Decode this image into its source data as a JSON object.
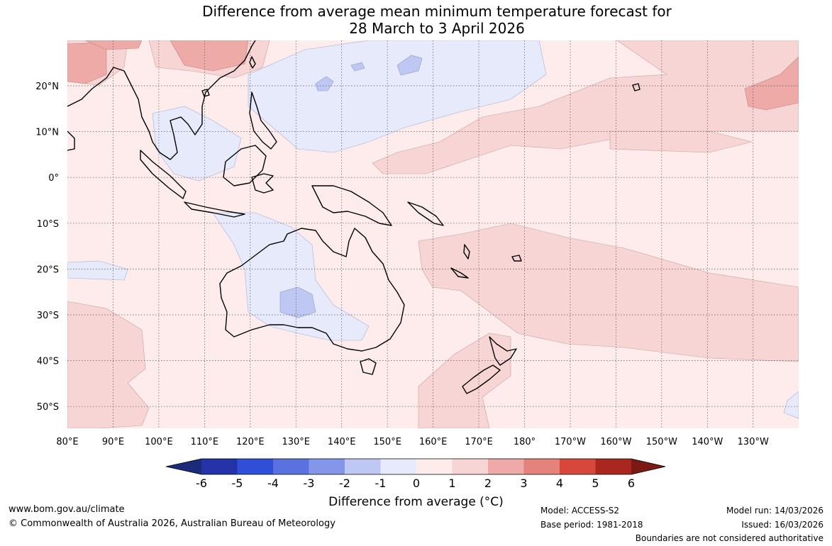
{
  "title": {
    "line1": "Difference from average mean minimum temperature forecast for",
    "line2": "28 March to 3 April 2026"
  },
  "map": {
    "lon_labels": [
      "80°E",
      "90°E",
      "100°E",
      "110°E",
      "120°E",
      "130°E",
      "140°E",
      "150°E",
      "160°E",
      "170°E",
      "180°",
      "170°W",
      "160°W",
      "150°W",
      "140°W",
      "130°W"
    ],
    "lat_labels": [
      "20°N",
      "10°N",
      "0°",
      "10°S",
      "20°S",
      "30°S",
      "40°S",
      "50°S"
    ]
  },
  "colorbar": {
    "label": "Difference from average (°C)",
    "ticks": [
      "-6",
      "-5",
      "-4",
      "-3",
      "-2",
      "-1",
      "0",
      "1",
      "2",
      "3",
      "4",
      "5",
      "6"
    ],
    "colors": [
      "#2434a8",
      "#2f4fd8",
      "#5a72e0",
      "#8496e8",
      "#bfc8f2",
      "#e6eafb",
      "#fdeceb",
      "#f7d5d4",
      "#eeaaa7",
      "#e3837c",
      "#d8473c",
      "#a8281f"
    ],
    "min_color": "#1c2a7a",
    "max_color": "#7a1a12"
  },
  "footer": {
    "website": "www.bom.gov.au/climate",
    "copyright": "© Commonwealth of Australia 2026, Australian Bureau of Meteorology",
    "model": "Model: ACCESS-S2",
    "base_period": "Base period: 1981-2018",
    "model_run": "Model run: 14/03/2026",
    "issued": "Issued: 16/03/2026",
    "disclaimer": "Boundaries are not considered authoritative"
  }
}
